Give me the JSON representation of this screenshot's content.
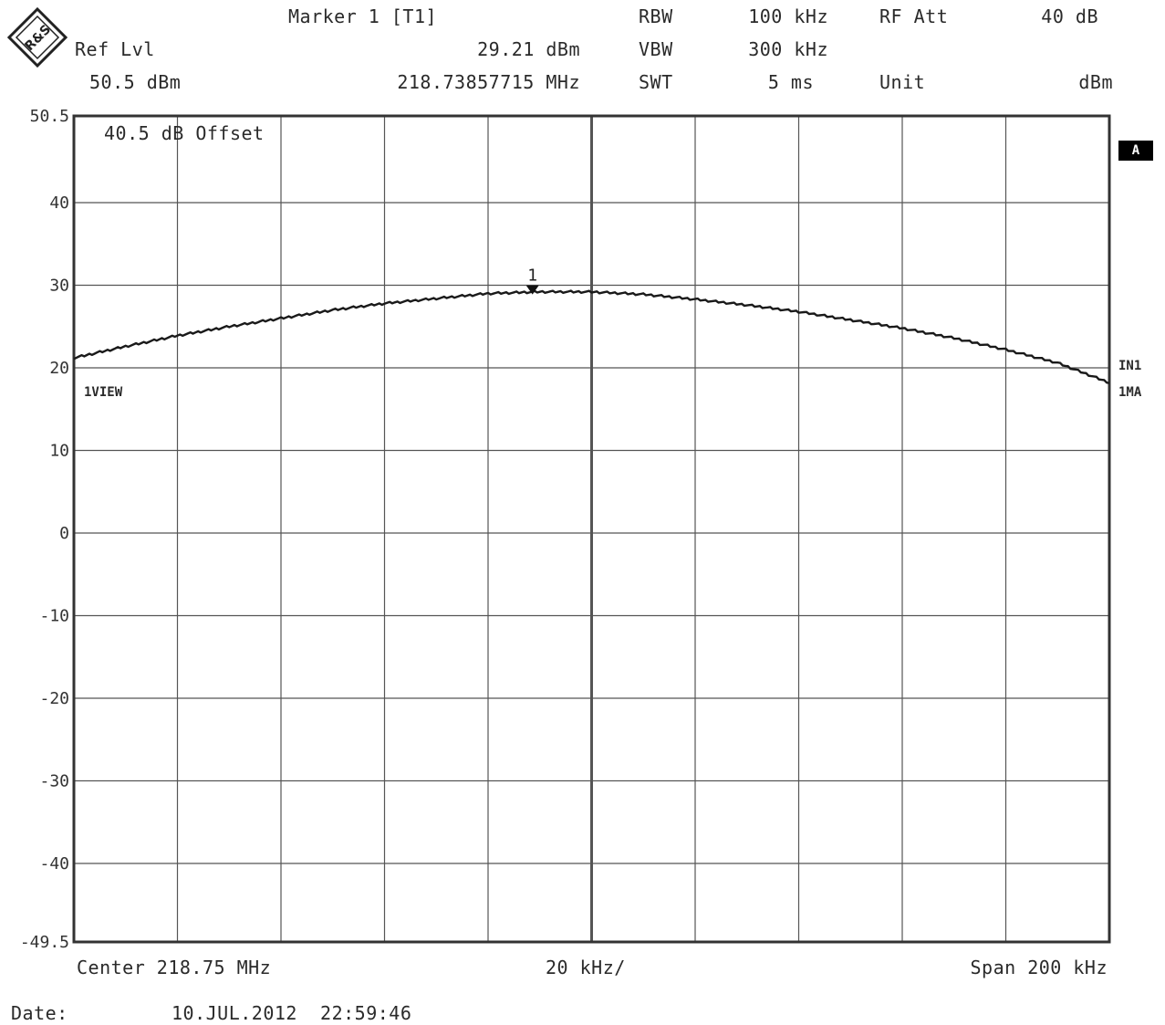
{
  "header": {
    "marker_title": "Marker 1 [T1]",
    "marker_level": "29.21 dBm",
    "marker_freq": "218.73857715 MHz",
    "ref_lvl_label": "Ref Lvl",
    "ref_lvl_value": "50.5 dBm",
    "rbw_label": "RBW",
    "rbw_value": "100 kHz",
    "vbw_label": "VBW",
    "vbw_value": "300 kHz",
    "swt_label": "SWT",
    "swt_value": "5 ms",
    "rfatt_label": "RF Att",
    "rfatt_value": "40 dB",
    "unit_label": "Unit",
    "unit_value": "dBm"
  },
  "logo_text": "R&S",
  "plot": {
    "offset_text": "40.5 dB Offset",
    "view_label": "1VIEW",
    "right_badge": "A",
    "right_label_in": "IN1",
    "right_label_ma": "1MA",
    "marker_label": "1"
  },
  "footer": {
    "center": "Center 218.75 MHz",
    "div": "20 kHz/",
    "span": "Span 200 kHz",
    "date_label": "Date:",
    "date_value": "10.JUL.2012  22:59:46"
  },
  "colors": {
    "trace": "#1a1a1a",
    "grid": "#555555",
    "frame": "#333333"
  },
  "chart_data": {
    "type": "line",
    "title": "",
    "xlabel": "",
    "ylabel": "",
    "x_unit": "MHz",
    "y_unit": "dBm",
    "xlim": [
      218.65,
      218.85
    ],
    "ylim": [
      -49.5,
      50.5
    ],
    "y_ticks": [
      50.5,
      40,
      30,
      20,
      10,
      0,
      -10,
      -20,
      -30,
      -40,
      -49.5
    ],
    "y_tick_labels": [
      "50.5",
      "40",
      "30",
      "20",
      "10",
      "0",
      "-10",
      "-20",
      "-30",
      "-40",
      "-49.5"
    ],
    "grid": true,
    "series": [
      {
        "x": [
          218.65,
          218.66,
          218.67,
          218.68,
          218.69,
          218.7,
          218.71,
          218.72,
          218.73,
          218.74,
          218.75,
          218.76,
          218.77,
          218.78,
          218.79,
          218.8,
          218.81,
          218.82,
          218.83,
          218.84,
          218.85
        ],
        "y": [
          21.2,
          22.6,
          23.9,
          25.0,
          26.0,
          27.0,
          27.8,
          28.4,
          29.0,
          29.21,
          29.2,
          28.9,
          28.3,
          27.6,
          26.8,
          25.8,
          24.8,
          23.6,
          22.2,
          20.6,
          18.2
        ]
      }
    ],
    "markers": [
      {
        "name": "1",
        "x": 218.73857715,
        "y": 29.21
      }
    ]
  }
}
